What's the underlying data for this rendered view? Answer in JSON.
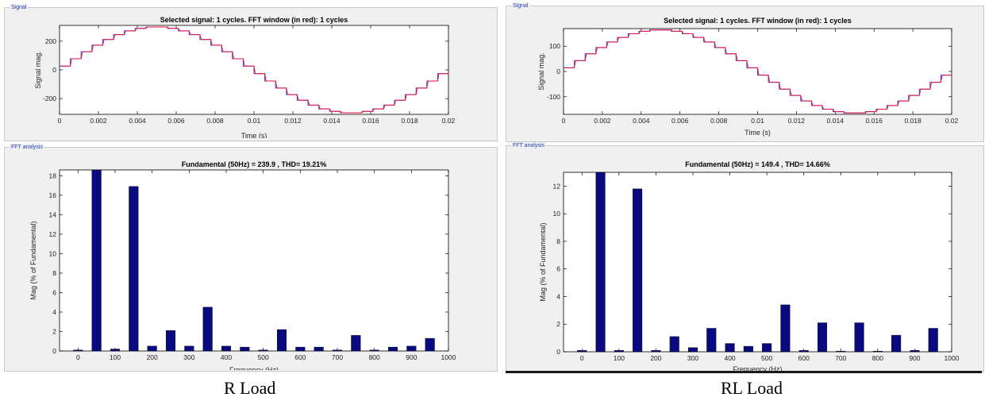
{
  "panels": [
    {
      "caption": "R Load",
      "signal_group_label": "Signal",
      "fft_group_label": "FFT analysis"
    },
    {
      "caption": "RL Load",
      "signal_group_label": "Signal",
      "fft_group_label": "FFT analysis"
    }
  ],
  "colors": {
    "signal_line": "#3b3bd6",
    "fft_window_line": "#e8103a",
    "bar": "#0a0a80",
    "group_label": "#1f3fb4",
    "panel_bg": "#f0f0f0"
  },
  "chart_data": [
    {
      "type": "line",
      "title": "Selected signal: 1 cycles. FFT window (in red): 1 cycles",
      "xlabel": "Time (s)",
      "ylabel": "Signal mag.",
      "xlim": [
        0,
        0.02
      ],
      "ylim": [
        -310,
        310
      ],
      "xticks": [
        0,
        0.002,
        0.004,
        0.006,
        0.008,
        0.01,
        0.012,
        0.014,
        0.016,
        0.018,
        0.02
      ],
      "xtick_labels": [
        "0",
        "0.002",
        "0.004",
        "0.006",
        "0.008",
        "0.01",
        "0.012",
        "0.014",
        "0.016",
        "0.018",
        "0.02"
      ],
      "yticks": [
        -200,
        0,
        200
      ],
      "ytick_labels": [
        "-200",
        "0",
        "200"
      ],
      "waveform": "staircase-sine",
      "amplitude": 300,
      "steps_per_quarter": 9,
      "series": [
        {
          "name": "Selected signal",
          "color": "#3b3bd6"
        },
        {
          "name": "FFT window",
          "color": "#e8103a"
        }
      ]
    },
    {
      "type": "bar",
      "title": "Fundamental (50Hz) = 239.9 , THD= 19.21%",
      "xlabel": "Frequency (Hz)",
      "ylabel": "Mag (% of Fundamental)",
      "xlim": [
        -50,
        1000
      ],
      "ylim": [
        0,
        18.6
      ],
      "xticks": [
        0,
        100,
        200,
        300,
        400,
        500,
        600,
        700,
        800,
        900,
        1000
      ],
      "xtick_labels": [
        "0",
        "100",
        "200",
        "300",
        "400",
        "500",
        "600",
        "700",
        "800",
        "900",
        "1000"
      ],
      "yticks": [
        0,
        2,
        4,
        6,
        8,
        10,
        12,
        14,
        16,
        18
      ],
      "ytick_labels": [
        "0",
        "2",
        "4",
        "6",
        "8",
        "10",
        "12",
        "14",
        "16",
        "18"
      ],
      "x": [
        0,
        50,
        100,
        150,
        200,
        250,
        300,
        350,
        400,
        450,
        500,
        550,
        600,
        650,
        700,
        750,
        800,
        850,
        900,
        950
      ],
      "values": [
        0.1,
        18.6,
        0.2,
        16.9,
        0.5,
        2.1,
        0.5,
        4.5,
        0.5,
        0.4,
        0.1,
        2.2,
        0.4,
        0.4,
        0.1,
        1.6,
        0.1,
        0.4,
        0.5,
        1.3
      ]
    },
    {
      "type": "line",
      "title": "Selected signal: 1 cycles. FFT window (in red): 1 cycles",
      "xlabel": "Time (s)",
      "ylabel": "Signal mag.",
      "xlim": [
        0,
        0.02
      ],
      "ylim": [
        -170,
        170
      ],
      "xticks": [
        0,
        0.002,
        0.004,
        0.006,
        0.008,
        0.01,
        0.012,
        0.014,
        0.016,
        0.018,
        0.02
      ],
      "xtick_labels": [
        "0",
        "0.002",
        "0.004",
        "0.006",
        "0.008",
        "0.01",
        "0.012",
        "0.014",
        "0.016",
        "0.018",
        "0.02"
      ],
      "yticks": [
        -100,
        0,
        100
      ],
      "ytick_labels": [
        "-100",
        "0",
        "100"
      ],
      "waveform": "staircase-sine",
      "amplitude": 165,
      "steps_per_quarter": 9,
      "series": [
        {
          "name": "Selected signal",
          "color": "#3b3bd6"
        },
        {
          "name": "FFT window",
          "color": "#e8103a"
        }
      ]
    },
    {
      "type": "bar",
      "title": "Fundamental (50Hz) = 149.4 , THD= 14.66%",
      "xlabel": "Frequency (Hz)",
      "ylabel": "Mag (% of Fundamental)",
      "xlim": [
        -50,
        1000
      ],
      "ylim": [
        0,
        13
      ],
      "xticks": [
        0,
        100,
        200,
        300,
        400,
        500,
        600,
        700,
        800,
        900,
        1000
      ],
      "xtick_labels": [
        "0",
        "100",
        "200",
        "300",
        "400",
        "500",
        "600",
        "700",
        "800",
        "900",
        "1000"
      ],
      "yticks": [
        0,
        2,
        4,
        6,
        8,
        10,
        12
      ],
      "ytick_labels": [
        "0",
        "2",
        "4",
        "6",
        "8",
        "10",
        "12"
      ],
      "x": [
        0,
        50,
        100,
        150,
        200,
        250,
        300,
        350,
        400,
        450,
        500,
        550,
        600,
        650,
        700,
        750,
        800,
        850,
        900,
        950
      ],
      "values": [
        0.1,
        13.0,
        0.1,
        11.8,
        0.1,
        1.1,
        0.3,
        1.7,
        0.6,
        0.4,
        0.6,
        3.4,
        0.1,
        2.1,
        0.05,
        2.1,
        0.05,
        1.2,
        0.1,
        1.7
      ]
    }
  ]
}
